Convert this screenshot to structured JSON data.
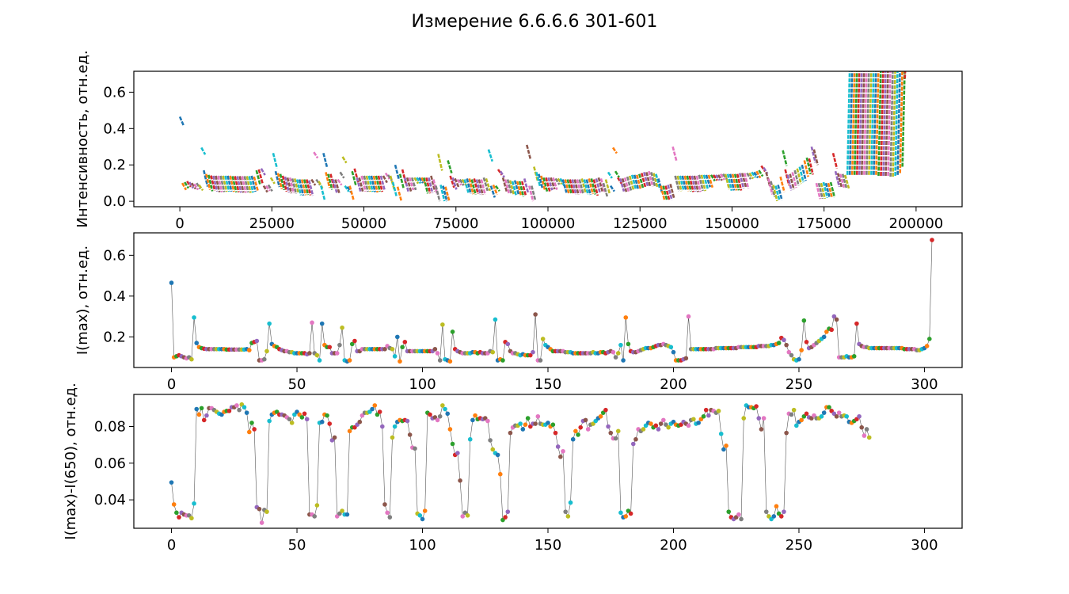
{
  "chart_data": [
    {
      "type": "line",
      "title": "Измерение 6.6.6.6 301-601",
      "ylabel": "Интенсивность, отн.ед.",
      "xlabel": "",
      "xlim": [
        -12500,
        212500
      ],
      "ylim": [
        -0.03,
        0.715
      ],
      "xticks": [
        0,
        25000,
        50000,
        75000,
        100000,
        125000,
        150000,
        175000,
        200000
      ],
      "xtick_labels": [
        "0",
        "25000",
        "50000",
        "75000",
        "100000",
        "125000",
        "150000",
        "175000",
        "200000"
      ],
      "yticks": [
        0.0,
        0.2,
        0.4,
        0.6
      ],
      "ytick_labels": [
        "0.0",
        "0.2",
        "0.4",
        "0.6"
      ],
      "grid": false,
      "series_style": "300 short colored segments, one per spectrum window of ~650 samples, each segment falling from I(max) to I(max)-(I(max)-I(650))",
      "segment_window": 650
    },
    {
      "type": "line",
      "ylabel": "I(max), отн.ед.",
      "xlabel": "",
      "xlim": [
        -15,
        315
      ],
      "ylim": [
        0.05,
        0.71
      ],
      "xticks": [
        0,
        50,
        100,
        150,
        200,
        250,
        300
      ],
      "xtick_labels": [
        "0",
        "50",
        "100",
        "150",
        "200",
        "250",
        "300"
      ],
      "yticks": [
        0.2,
        0.4,
        0.6
      ],
      "ytick_labels": [
        "0.2",
        "0.4",
        "0.6"
      ],
      "grid": false,
      "x_start": 0,
      "values": [
        0.465,
        0.1,
        0.105,
        0.11,
        0.105,
        0.1,
        0.095,
        0.1,
        0.09,
        0.295,
        0.17,
        0.15,
        0.145,
        0.142,
        0.14,
        0.14,
        0.14,
        0.14,
        0.14,
        0.14,
        0.14,
        0.14,
        0.138,
        0.138,
        0.138,
        0.138,
        0.138,
        0.138,
        0.138,
        0.138,
        0.14,
        0.135,
        0.17,
        0.175,
        0.18,
        0.085,
        0.085,
        0.09,
        0.13,
        0.265,
        0.165,
        0.155,
        0.15,
        0.14,
        0.135,
        0.13,
        0.13,
        0.125,
        0.125,
        0.12,
        0.12,
        0.12,
        0.12,
        0.12,
        0.115,
        0.12,
        0.27,
        0.12,
        0.11,
        0.085,
        0.265,
        0.16,
        0.15,
        0.15,
        0.12,
        0.12,
        0.12,
        0.16,
        0.245,
        0.085,
        0.08,
        0.085,
        0.165,
        0.18,
        0.13,
        0.13,
        0.14,
        0.14,
        0.14,
        0.14,
        0.14,
        0.14,
        0.14,
        0.14,
        0.14,
        0.14,
        0.155,
        0.145,
        0.14,
        0.105,
        0.2,
        0.08,
        0.15,
        0.175,
        0.13,
        0.13,
        0.13,
        0.13,
        0.13,
        0.13,
        0.13,
        0.13,
        0.13,
        0.13,
        0.13,
        0.14,
        0.12,
        0.085,
        0.26,
        0.09,
        0.085,
        0.08,
        0.225,
        0.14,
        0.13,
        0.125,
        0.12,
        0.12,
        0.12,
        0.12,
        0.125,
        0.125,
        0.12,
        0.125,
        0.12,
        0.12,
        0.12,
        0.13,
        0.125,
        0.285,
        0.085,
        0.09,
        0.085,
        0.175,
        0.165,
        0.13,
        0.12,
        0.12,
        0.115,
        0.11,
        0.115,
        0.11,
        0.11,
        0.11,
        0.125,
        0.31,
        0.085,
        0.085,
        0.19,
        0.16,
        0.15,
        0.14,
        0.13,
        0.13,
        0.13,
        0.13,
        0.13,
        0.125,
        0.125,
        0.125,
        0.12,
        0.12,
        0.12,
        0.12,
        0.12,
        0.12,
        0.12,
        0.12,
        0.125,
        0.12,
        0.12,
        0.125,
        0.125,
        0.12,
        0.125,
        0.13,
        0.125,
        0.1,
        0.12,
        0.16,
        0.085,
        0.295,
        0.165,
        0.13,
        0.125,
        0.125,
        0.13,
        0.135,
        0.14,
        0.145,
        0.145,
        0.145,
        0.15,
        0.155,
        0.16,
        0.16,
        0.165,
        0.16,
        0.155,
        0.15,
        0.125,
        0.085,
        0.085,
        0.085,
        0.09,
        0.095,
        0.3,
        0.14,
        0.14,
        0.14,
        0.14,
        0.14,
        0.14,
        0.14,
        0.14,
        0.14,
        0.14,
        0.145,
        0.145,
        0.145,
        0.145,
        0.145,
        0.145,
        0.145,
        0.145,
        0.145,
        0.15,
        0.15,
        0.15,
        0.15,
        0.15,
        0.15,
        0.15,
        0.15,
        0.155,
        0.155,
        0.155,
        0.155,
        0.155,
        0.16,
        0.16,
        0.165,
        0.17,
        0.195,
        0.185,
        0.16,
        0.125,
        0.11,
        0.09,
        0.085,
        0.09,
        0.135,
        0.28,
        0.175,
        0.145,
        0.15,
        0.16,
        0.17,
        0.18,
        0.19,
        0.2,
        0.225,
        0.24,
        0.235,
        0.3,
        0.285,
        0.1,
        0.1,
        0.1,
        0.105,
        0.1,
        0.1,
        0.105,
        0.265,
        0.165,
        0.155,
        0.15,
        0.15,
        0.145,
        0.145,
        0.145,
        0.145,
        0.145,
        0.145,
        0.145,
        0.145,
        0.145,
        0.145,
        0.145,
        0.145,
        0.145,
        0.145,
        0.14,
        0.14,
        0.14,
        0.14,
        0.14,
        0.135,
        0.135,
        0.14,
        0.145,
        0.155,
        0.19,
        0.675
      ]
    },
    {
      "type": "line",
      "ylabel": "I(max)-I(650), отн.ед.",
      "xlabel": "",
      "xlim": [
        -15,
        315
      ],
      "ylim": [
        0.0245,
        0.0975
      ],
      "xticks": [
        0,
        50,
        100,
        150,
        200,
        250,
        300
      ],
      "xtick_labels": [
        "0",
        "50",
        "100",
        "150",
        "200",
        "250",
        "300"
      ],
      "yticks": [
        0.04,
        0.06,
        0.08
      ],
      "ytick_labels": [
        "0.04",
        "0.06",
        "0.08"
      ],
      "grid": false,
      "x_start": 0,
      "values": [
        0.0495,
        0.0375,
        0.033,
        0.0305,
        0.033,
        0.032,
        0.0315,
        0.0315,
        0.03,
        0.038,
        0.0895,
        0.0865,
        0.09,
        0.0835,
        0.086,
        0.09,
        0.09,
        0.089,
        0.088,
        0.087,
        0.0865,
        0.088,
        0.0885,
        0.0885,
        0.0905,
        0.0905,
        0.0915,
        0.089,
        0.092,
        0.0905,
        0.0875,
        0.077,
        0.082,
        0.0785,
        0.036,
        0.035,
        0.0275,
        0.0345,
        0.0335,
        0.083,
        0.0865,
        0.0875,
        0.088,
        0.0865,
        0.0865,
        0.086,
        0.085,
        0.084,
        0.082,
        0.0865,
        0.088,
        0.0865,
        0.085,
        0.087,
        0.084,
        0.032,
        0.032,
        0.031,
        0.037,
        0.082,
        0.0825,
        0.0865,
        0.086,
        0.0815,
        0.0725,
        0.074,
        0.031,
        0.0325,
        0.034,
        0.032,
        0.032,
        0.0775,
        0.0795,
        0.0795,
        0.081,
        0.0825,
        0.086,
        0.0875,
        0.0875,
        0.088,
        0.0895,
        0.0915,
        0.0865,
        0.088,
        0.08,
        0.0375,
        0.033,
        0.0305,
        0.074,
        0.08,
        0.0825,
        0.0835,
        0.083,
        0.0835,
        0.083,
        0.0755,
        0.0685,
        0.068,
        0.0325,
        0.0315,
        0.0295,
        0.034,
        0.0875,
        0.0865,
        0.0845,
        0.085,
        0.0835,
        0.0855,
        0.0915,
        0.0895,
        0.087,
        0.0785,
        0.0705,
        0.0645,
        0.0655,
        0.0505,
        0.031,
        0.033,
        0.0315,
        0.073,
        0.0835,
        0.086,
        0.084,
        0.0845,
        0.084,
        0.0845,
        0.083,
        0.0725,
        0.0675,
        0.0655,
        0.0645,
        0.054,
        0.029,
        0.0305,
        0.0335,
        0.0765,
        0.0795,
        0.0805,
        0.0805,
        0.0815,
        0.0785,
        0.081,
        0.0845,
        0.08,
        0.0815,
        0.0815,
        0.0855,
        0.0815,
        0.081,
        0.081,
        0.082,
        0.08,
        0.081,
        0.0765,
        0.069,
        0.0635,
        0.0665,
        0.0335,
        0.031,
        0.0385,
        0.073,
        0.0775,
        0.0755,
        0.0795,
        0.083,
        0.0835,
        0.0785,
        0.081,
        0.0815,
        0.083,
        0.0845,
        0.0855,
        0.0875,
        0.089,
        0.08,
        0.0765,
        0.0735,
        0.0735,
        0.0775,
        0.033,
        0.0305,
        0.031,
        0.034,
        0.0325,
        0.0705,
        0.073,
        0.0785,
        0.0775,
        0.0785,
        0.0805,
        0.082,
        0.0815,
        0.0795,
        0.0805,
        0.0785,
        0.0815,
        0.0835,
        0.081,
        0.0795,
        0.0815,
        0.0825,
        0.081,
        0.0805,
        0.081,
        0.0825,
        0.0815,
        0.0805,
        0.0835,
        0.084,
        0.0815,
        0.082,
        0.084,
        0.0855,
        0.089,
        0.086,
        0.089,
        0.0885,
        0.0875,
        0.0885,
        0.076,
        0.0675,
        0.0695,
        0.0335,
        0.0305,
        0.0295,
        0.0305,
        0.032,
        0.0295,
        0.0845,
        0.0915,
        0.0905,
        0.0905,
        0.09,
        0.091,
        0.0845,
        0.0785,
        0.0845,
        0.0335,
        0.031,
        0.0295,
        0.031,
        0.0365,
        0.0325,
        0.031,
        0.0335,
        0.0765,
        0.087,
        0.0865,
        0.089,
        0.0805,
        0.0825,
        0.0835,
        0.0855,
        0.087,
        0.085,
        0.0845,
        0.086,
        0.0845,
        0.0845,
        0.0855,
        0.0875,
        0.0905,
        0.0905,
        0.0885,
        0.087,
        0.0855,
        0.0875,
        0.0855,
        0.086,
        0.0855,
        0.0825,
        0.082,
        0.083,
        0.084,
        0.0855,
        0.0795,
        0.075,
        0.0785,
        0.074
      ]
    }
  ],
  "colors": {
    "palette": [
      "#1f77b4",
      "#ff7f0e",
      "#2ca02c",
      "#d62728",
      "#9467bd",
      "#8c564b",
      "#e377c2",
      "#7f7f7f",
      "#bcbd22",
      "#17becf"
    ],
    "connector_line": "#555555",
    "axes": "#000000",
    "background": "#ffffff"
  }
}
